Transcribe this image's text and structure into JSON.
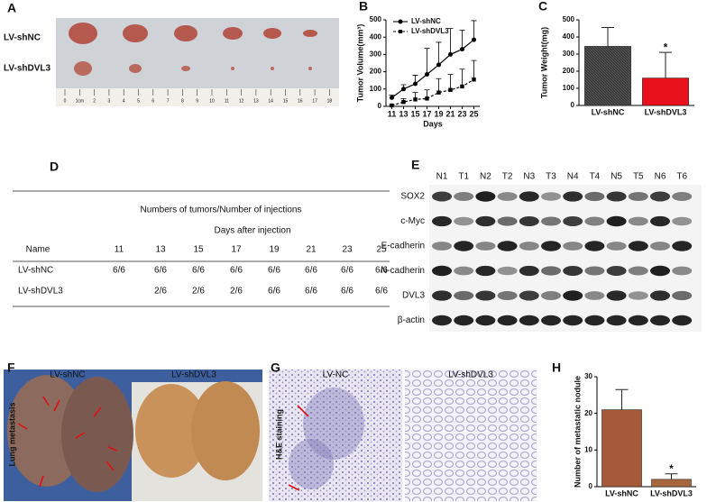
{
  "panels": [
    "A",
    "B",
    "C",
    "D",
    "E",
    "F",
    "G",
    "H"
  ],
  "photo": {
    "rows": [
      "LV-shNC",
      "LV-shDVL3"
    ],
    "ruler": [
      "0",
      "1cm",
      "2",
      "3",
      "4",
      "5",
      "6",
      "7",
      "8",
      "9",
      "10",
      "11",
      "12",
      "13",
      "14",
      "15",
      "16",
      "17",
      "18"
    ]
  },
  "chart_data": [
    {
      "type": "line",
      "y_label": "Tumor Volume(mm³)",
      "x_label": "Days",
      "x": [
        11,
        13,
        15,
        17,
        19,
        21,
        23,
        25
      ],
      "xlim": [
        10,
        26
      ],
      "xticks": [
        11,
        13,
        15,
        17,
        19,
        21,
        23,
        25
      ],
      "ylim": [
        0,
        500
      ],
      "yticks": [
        0,
        100,
        200,
        300,
        400,
        500
      ],
      "legend": "top-left",
      "series": [
        {
          "name": "LV-shNC",
          "color": "#000000",
          "marker": "circle",
          "dashed": false,
          "values": [
            50,
            100,
            130,
            185,
            240,
            300,
            330,
            385
          ],
          "errors": [
            15,
            25,
            50,
            150,
            130,
            150,
            110,
            110
          ]
        },
        {
          "name": "LV-shDVL3",
          "color": "#000000",
          "marker": "square",
          "dashed": true,
          "values": [
            5,
            25,
            40,
            45,
            80,
            95,
            115,
            155
          ],
          "errors": [
            5,
            20,
            40,
            50,
            80,
            90,
            100,
            110
          ]
        }
      ]
    },
    {
      "type": "bar",
      "y_label": "Tumor Weight(mg)",
      "categories": [
        "LV-shNC",
        "LV-shDVL3"
      ],
      "values": [
        345,
        160
      ],
      "errors": [
        110,
        150
      ],
      "colors": [
        "#3a3a3a",
        "#e8101a"
      ],
      "ylim": [
        0,
        500
      ],
      "yticks": [
        0,
        100,
        200,
        300,
        400,
        500
      ],
      "annotation": "*"
    },
    {
      "type": "bar",
      "y_label": "Number of metastatic nodule",
      "categories": [
        "LV-shNC",
        "LV-shDVL3"
      ],
      "values": [
        21,
        2
      ],
      "errors": [
        5.5,
        1.5
      ],
      "colors": [
        "#a65a3a",
        "#a8663c"
      ],
      "ylim": [
        0,
        30
      ],
      "yticks": [
        0,
        10,
        20,
        30
      ],
      "annotation": "*"
    }
  ],
  "table": {
    "title": "Numbers of tumors/Number of injections",
    "subtitle": "Days after injection",
    "header": [
      "Name",
      "11",
      "13",
      "15",
      "17",
      "19",
      "21",
      "23",
      "25"
    ],
    "rows": [
      [
        "LV-shNC",
        "6/6",
        "6/6",
        "6/6",
        "6/6",
        "6/6",
        "6/6",
        "6/6",
        "6/6"
      ],
      [
        "LV-shDVL3",
        null,
        "2/6",
        "2/6",
        "2/6",
        "6/6",
        "6/6",
        "6/6",
        "6/6"
      ]
    ]
  },
  "blot": {
    "lanes": [
      "N1",
      "T1",
      "N2",
      "T2",
      "N3",
      "T3",
      "N4",
      "T4",
      "N5",
      "T5",
      "N6",
      "T6"
    ],
    "proteins": [
      "SOX2",
      "c-Myc",
      "E-cadherin",
      "N-cadherin",
      "DVL3",
      "β-actin"
    ]
  },
  "lung": {
    "y_label": "Lung metastasis",
    "labels": [
      "LV-shNC",
      "LV-shDVL3"
    ]
  },
  "histology": {
    "y_label": "H&E staining",
    "labels": [
      "LV-NC",
      "LV-shDVL3"
    ]
  }
}
